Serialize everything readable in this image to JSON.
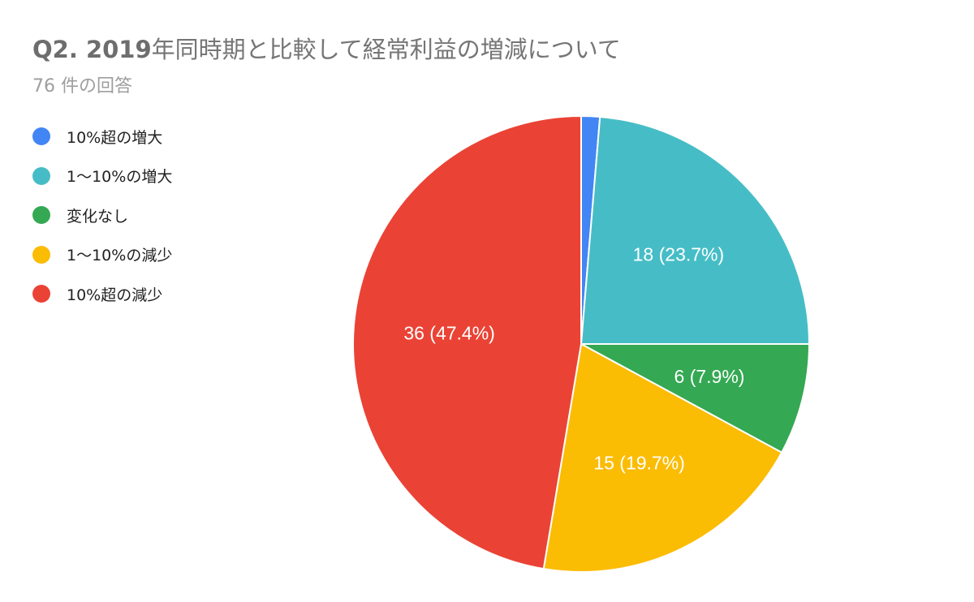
{
  "chart_data": {
    "type": "pie",
    "title_prefix": "Q2. 2019",
    "title_rest": "年同時期と比較して経常利益の増減について",
    "subtitle": "76 件の回答",
    "legend_position": "left",
    "slices": [
      {
        "label": "10%超の増大",
        "value": 1,
        "percent": "1.3%",
        "color": "#4285f4"
      },
      {
        "label": "1〜10%の増大",
        "value": 18,
        "percent": "23.7%",
        "color": "#46bdc6"
      },
      {
        "label": "変化なし",
        "value": 6,
        "percent": "7.9%",
        "color": "#34a853"
      },
      {
        "label": "1〜10%の減少",
        "value": 15,
        "percent": "19.7%",
        "color": "#fbbc04"
      },
      {
        "label": "10%超の減少",
        "value": 36,
        "percent": "47.4%",
        "color": "#ea4335"
      }
    ]
  }
}
